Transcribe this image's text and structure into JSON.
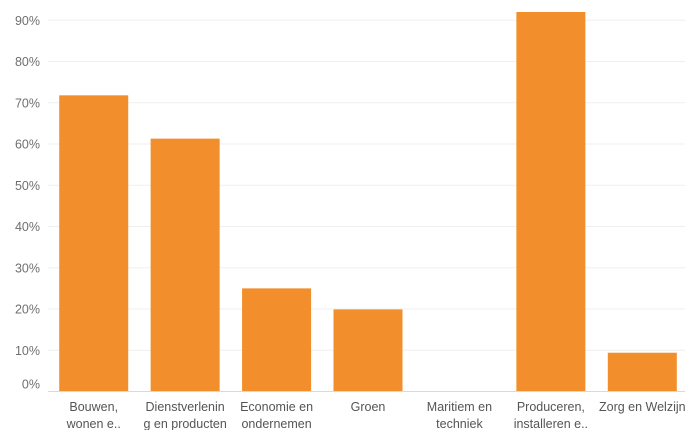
{
  "chart_data": {
    "type": "bar",
    "title": "",
    "xlabel": "",
    "ylabel": "",
    "categories": [
      [
        "Bouwen,",
        "wonen e.."
      ],
      [
        "Dienstverlenin",
        "g en producten"
      ],
      [
        "Economie en",
        "ondernemen"
      ],
      [
        "Groen"
      ],
      [
        "Maritiem en",
        "techniek"
      ],
      [
        "Produceren,",
        "installeren e.."
      ],
      [
        "Zorg en Welzijn"
      ]
    ],
    "values": [
      71.8,
      61.3,
      25.0,
      19.9,
      0,
      92.0,
      9.4
    ],
    "y_ticks": [
      0,
      10,
      20,
      30,
      40,
      50,
      60,
      70,
      80,
      90
    ],
    "y_tick_labels": [
      "0%",
      "10%",
      "20%",
      "30%",
      "40%",
      "50%",
      "60%",
      "70%",
      "80%",
      "90%"
    ],
    "ylim": [
      0,
      94
    ],
    "grid": true,
    "legend": "none",
    "bar_color": "#F28E2B"
  }
}
